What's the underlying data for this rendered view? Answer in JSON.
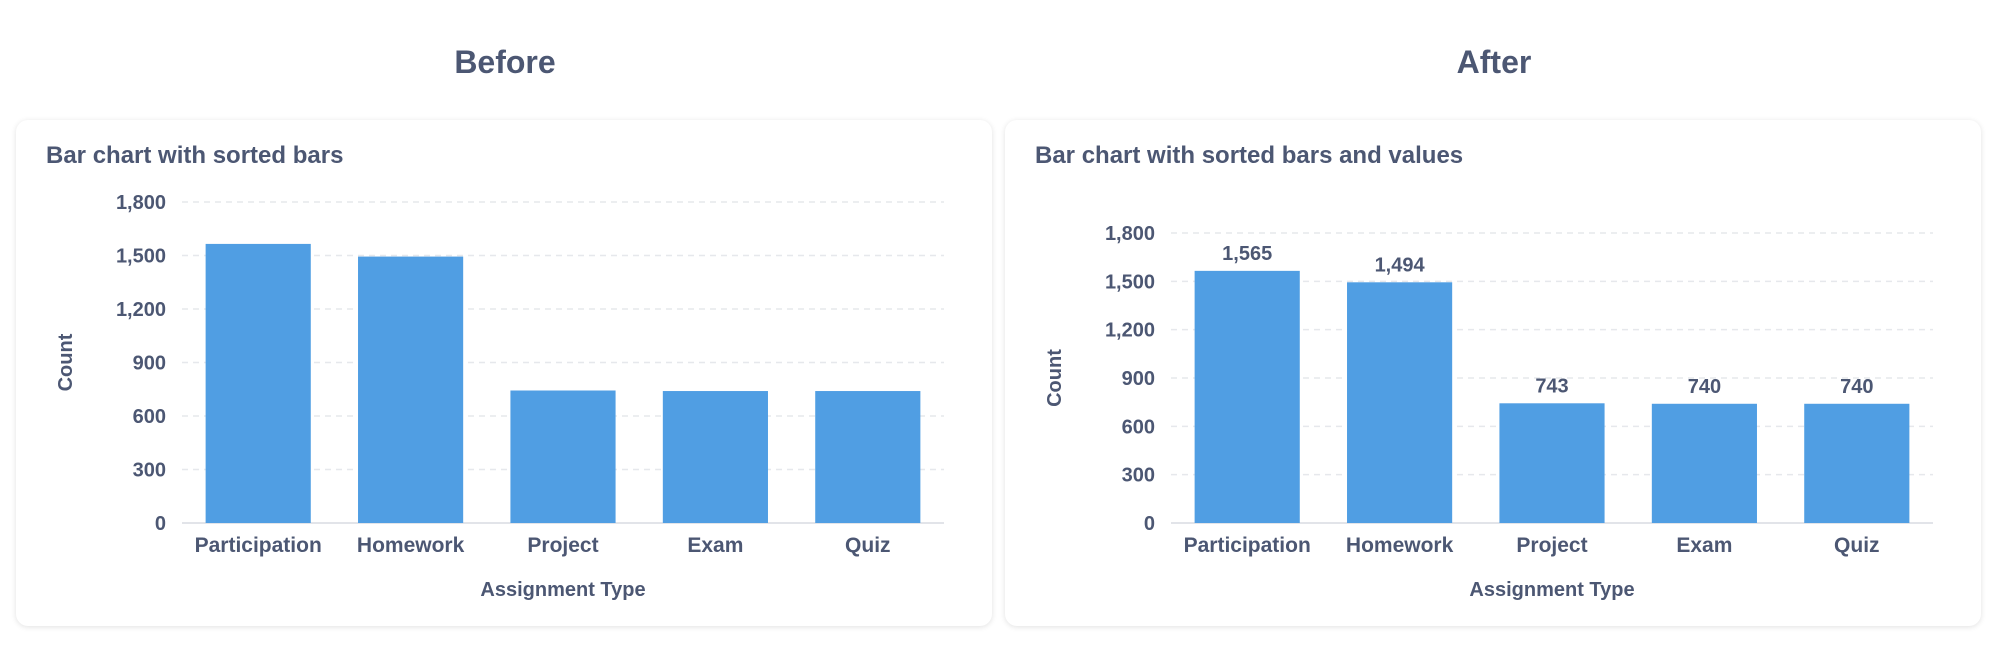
{
  "panels": {
    "before": {
      "heading": "Before"
    },
    "after": {
      "heading": "After"
    }
  },
  "colors": {
    "bar": "#509ee3",
    "text": "#4c5773",
    "grid": "#e6e8ec"
  },
  "chart_data": [
    {
      "type": "bar",
      "title": "Bar chart with sorted bars",
      "categories": [
        "Participation",
        "Homework",
        "Project",
        "Exam",
        "Quiz"
      ],
      "values": [
        1565,
        1494,
        743,
        740,
        740
      ],
      "xlabel": "Assignment Type",
      "ylabel": "Count",
      "yticks": [
        "0",
        "300",
        "600",
        "900",
        "1,200",
        "1,500",
        "1,800"
      ],
      "ylim": [
        0,
        1800
      ],
      "show_values": false,
      "grid": true
    },
    {
      "type": "bar",
      "title": "Bar chart with sorted bars and values",
      "categories": [
        "Participation",
        "Homework",
        "Project",
        "Exam",
        "Quiz"
      ],
      "values": [
        1565,
        1494,
        743,
        740,
        740
      ],
      "value_labels": [
        "1,565",
        "1,494",
        "743",
        "740",
        "740"
      ],
      "xlabel": "Assignment Type",
      "ylabel": "Count",
      "yticks": [
        "0",
        "300",
        "600",
        "900",
        "1,200",
        "1,500",
        "1,800"
      ],
      "ylim": [
        0,
        1800
      ],
      "show_values": true,
      "grid": true
    }
  ]
}
